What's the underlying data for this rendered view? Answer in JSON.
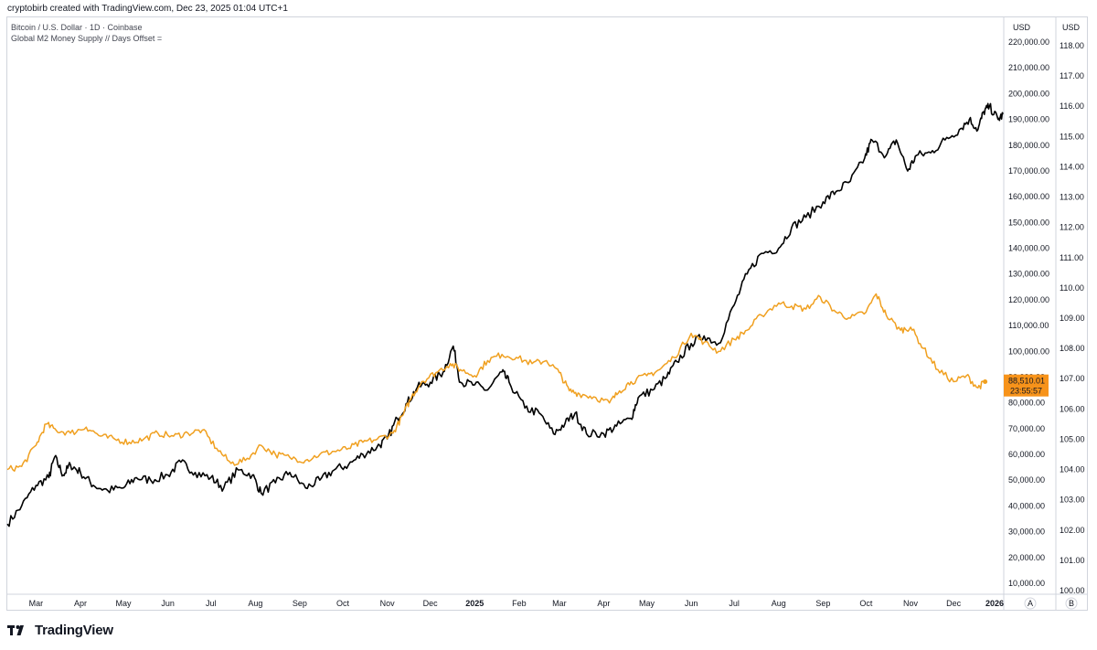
{
  "header": {
    "credit": "cryptobirb created with TradingView.com, Dec 23, 2025 01:04 UTC+1"
  },
  "legend": {
    "symbol_line": "Bitcoin / U.S. Dollar · 1D · Coinbase",
    "indicator_line": "Global M2 Money Supply // Days Offset ="
  },
  "axes": {
    "left_scale_title": "USD",
    "right_scale_title": "USD",
    "left_scale_button": "A",
    "right_scale_button": "B",
    "btc_ticks": [
      "220,000.00",
      "210,000.00",
      "200,000.00",
      "190,000.00",
      "180,000.00",
      "170,000.00",
      "160,000.00",
      "150,000.00",
      "140,000.00",
      "130,000.00",
      "120,000.00",
      "110,000.00",
      "100,000.00",
      "90,000.00",
      "80,000.00",
      "70,000.00",
      "60,000.00",
      "50,000.00",
      "40,000.00",
      "30,000.00",
      "20,000.00",
      "10,000.00"
    ],
    "m2_ticks": [
      "118.00",
      "117.00",
      "116.00",
      "115.00",
      "114.00",
      "113.00",
      "112.00",
      "111.00",
      "110.00",
      "109.00",
      "108.00",
      "107.00",
      "106.00",
      "105.00",
      "104.00",
      "103.00",
      "102.00",
      "101.00",
      "100.00"
    ],
    "x_ticks": [
      "Mar",
      "Apr",
      "May",
      "Jun",
      "Jul",
      "Aug",
      "Sep",
      "Oct",
      "Nov",
      "Dec",
      "2025",
      "Feb",
      "Mar",
      "Apr",
      "May",
      "Jun",
      "Jul",
      "Aug",
      "Sep",
      "Oct",
      "Nov",
      "Dec",
      "2026"
    ]
  },
  "price_tag": {
    "price": "88,510.01",
    "countdown": "23:55:57",
    "color": "#f7931a"
  },
  "footer": {
    "brand": "TradingView"
  },
  "colors": {
    "btc_line": "#000000",
    "m2_line": "#f0a020",
    "grid": "#eef0f3",
    "axis_border": "#d1d4dc"
  },
  "chart_data": {
    "type": "line",
    "x_range": [
      "2024-02-10",
      "2026-01-05"
    ],
    "y_left": {
      "unit": "USD",
      "range": [
        0,
        225000
      ]
    },
    "y_right": {
      "unit": "USD",
      "range": [
        99.9,
        118.2
      ]
    },
    "series": [
      {
        "name": "Bitcoin / U.S. Dollar · 1D · Coinbase",
        "axis": "left",
        "points": [
          [
            "2024-02-10",
            33000
          ],
          [
            "2024-02-20",
            40000
          ],
          [
            "2024-03-01",
            48000
          ],
          [
            "2024-03-10",
            51000
          ],
          [
            "2024-03-14",
            59000
          ],
          [
            "2024-03-20",
            52000
          ],
          [
            "2024-03-25",
            56000
          ],
          [
            "2024-04-01",
            53000
          ],
          [
            "2024-04-10",
            48000
          ],
          [
            "2024-04-20",
            46000
          ],
          [
            "2024-05-01",
            47000
          ],
          [
            "2024-05-10",
            51000
          ],
          [
            "2024-05-20",
            50000
          ],
          [
            "2024-06-01",
            52000
          ],
          [
            "2024-06-10",
            57000
          ],
          [
            "2024-06-20",
            53000
          ],
          [
            "2024-07-01",
            51000
          ],
          [
            "2024-07-10",
            47000
          ],
          [
            "2024-07-20",
            54000
          ],
          [
            "2024-07-30",
            52000
          ],
          [
            "2024-08-05",
            45000
          ],
          [
            "2024-08-15",
            49000
          ],
          [
            "2024-08-25",
            53000
          ],
          [
            "2024-09-05",
            47000
          ],
          [
            "2024-09-15",
            50000
          ],
          [
            "2024-09-25",
            54000
          ],
          [
            "2024-10-05",
            56000
          ],
          [
            "2024-10-15",
            60000
          ],
          [
            "2024-10-25",
            63000
          ],
          [
            "2024-11-01",
            66000
          ],
          [
            "2024-11-08",
            74000
          ],
          [
            "2024-11-15",
            80000
          ],
          [
            "2024-11-22",
            86000
          ],
          [
            "2024-12-01",
            88000
          ],
          [
            "2024-12-10",
            92000
          ],
          [
            "2024-12-17",
            102000
          ],
          [
            "2024-12-22",
            88000
          ],
          [
            "2025-01-01",
            87000
          ],
          [
            "2025-01-10",
            85000
          ],
          [
            "2025-01-20",
            92000
          ],
          [
            "2025-01-25",
            88000
          ],
          [
            "2025-02-05",
            78000
          ],
          [
            "2025-02-15",
            76000
          ],
          [
            "2025-02-25",
            68000
          ],
          [
            "2025-03-05",
            72000
          ],
          [
            "2025-03-12",
            76000
          ],
          [
            "2025-03-20",
            68000
          ],
          [
            "2025-04-01",
            68000
          ],
          [
            "2025-04-10",
            71000
          ],
          [
            "2025-04-20",
            74000
          ],
          [
            "2025-04-25",
            82000
          ],
          [
            "2025-05-05",
            85000
          ],
          [
            "2025-05-15",
            90000
          ],
          [
            "2025-05-22",
            96000
          ],
          [
            "2025-06-01",
            103000
          ],
          [
            "2025-06-10",
            106000
          ],
          [
            "2025-06-20",
            103000
          ],
          [
            "2025-07-01",
            118000
          ],
          [
            "2025-07-10",
            130000
          ],
          [
            "2025-07-20",
            138000
          ],
          [
            "2025-08-01",
            140000
          ],
          [
            "2025-08-10",
            148000
          ],
          [
            "2025-08-20",
            152000
          ],
          [
            "2025-09-01",
            158000
          ],
          [
            "2025-09-10",
            162000
          ],
          [
            "2025-09-20",
            166000
          ],
          [
            "2025-09-30",
            175000
          ],
          [
            "2025-10-05",
            182000
          ],
          [
            "2025-10-15",
            176000
          ],
          [
            "2025-10-22",
            182000
          ],
          [
            "2025-10-30",
            170000
          ],
          [
            "2025-11-05",
            176000
          ],
          [
            "2025-11-15",
            177000
          ],
          [
            "2025-11-25",
            182000
          ],
          [
            "2025-12-05",
            186000
          ],
          [
            "2025-12-12",
            190000
          ],
          [
            "2025-12-18",
            186000
          ],
          [
            "2025-12-22",
            193000
          ],
          [
            "2025-12-26",
            195000
          ],
          [
            "2026-01-01",
            190000
          ],
          [
            "2026-01-05",
            192000
          ]
        ]
      },
      {
        "name": "Global M2 Money Supply // Days Offset =",
        "axis": "right",
        "points": [
          [
            "2024-02-10",
            104.0
          ],
          [
            "2024-02-20",
            104.1
          ],
          [
            "2024-03-01",
            104.8
          ],
          [
            "2024-03-08",
            105.5
          ],
          [
            "2024-03-15",
            105.3
          ],
          [
            "2024-03-25",
            105.2
          ],
          [
            "2024-04-05",
            105.4
          ],
          [
            "2024-04-15",
            105.1
          ],
          [
            "2024-04-25",
            105.0
          ],
          [
            "2024-05-05",
            104.9
          ],
          [
            "2024-05-15",
            105.0
          ],
          [
            "2024-05-25",
            105.2
          ],
          [
            "2024-06-05",
            105.1
          ],
          [
            "2024-06-15",
            105.2
          ],
          [
            "2024-06-25",
            105.3
          ],
          [
            "2024-07-05",
            104.7
          ],
          [
            "2024-07-15",
            104.2
          ],
          [
            "2024-07-25",
            104.3
          ],
          [
            "2024-08-05",
            104.8
          ],
          [
            "2024-08-15",
            104.5
          ],
          [
            "2024-08-25",
            104.4
          ],
          [
            "2024-09-05",
            104.3
          ],
          [
            "2024-09-15",
            104.5
          ],
          [
            "2024-09-25",
            104.6
          ],
          [
            "2024-10-05",
            104.7
          ],
          [
            "2024-10-15",
            104.9
          ],
          [
            "2024-10-25",
            105.0
          ],
          [
            "2024-11-05",
            105.2
          ],
          [
            "2024-11-12",
            105.8
          ],
          [
            "2024-11-18",
            106.4
          ],
          [
            "2024-11-25",
            106.9
          ],
          [
            "2024-12-05",
            107.2
          ],
          [
            "2024-12-15",
            107.5
          ],
          [
            "2024-12-22",
            107.3
          ],
          [
            "2025-01-01",
            107.1
          ],
          [
            "2025-01-10",
            107.6
          ],
          [
            "2025-01-20",
            107.8
          ],
          [
            "2025-01-30",
            107.7
          ],
          [
            "2025-02-10",
            107.5
          ],
          [
            "2025-02-20",
            107.6
          ],
          [
            "2025-03-01",
            107.2
          ],
          [
            "2025-03-08",
            106.6
          ],
          [
            "2025-03-15",
            106.5
          ],
          [
            "2025-03-25",
            106.4
          ],
          [
            "2025-04-05",
            106.2
          ],
          [
            "2025-04-12",
            106.6
          ],
          [
            "2025-04-20",
            106.9
          ],
          [
            "2025-05-01",
            107.1
          ],
          [
            "2025-05-10",
            107.3
          ],
          [
            "2025-05-20",
            107.7
          ],
          [
            "2025-06-01",
            108.5
          ],
          [
            "2025-06-10",
            108.2
          ],
          [
            "2025-06-20",
            107.9
          ],
          [
            "2025-07-01",
            108.3
          ],
          [
            "2025-07-10",
            108.6
          ],
          [
            "2025-07-20",
            109.1
          ],
          [
            "2025-08-01",
            109.5
          ],
          [
            "2025-08-10",
            109.4
          ],
          [
            "2025-08-20",
            109.3
          ],
          [
            "2025-08-30",
            109.7
          ],
          [
            "2025-09-10",
            109.2
          ],
          [
            "2025-09-20",
            109.0
          ],
          [
            "2025-10-01",
            109.2
          ],
          [
            "2025-10-08",
            109.8
          ],
          [
            "2025-10-15",
            109.1
          ],
          [
            "2025-10-25",
            108.6
          ],
          [
            "2025-11-01",
            108.7
          ],
          [
            "2025-11-10",
            108.0
          ],
          [
            "2025-11-20",
            107.3
          ],
          [
            "2025-12-01",
            106.9
          ],
          [
            "2025-12-10",
            107.1
          ],
          [
            "2025-12-18",
            106.7
          ],
          [
            "2025-12-23",
            106.9
          ]
        ]
      }
    ]
  }
}
